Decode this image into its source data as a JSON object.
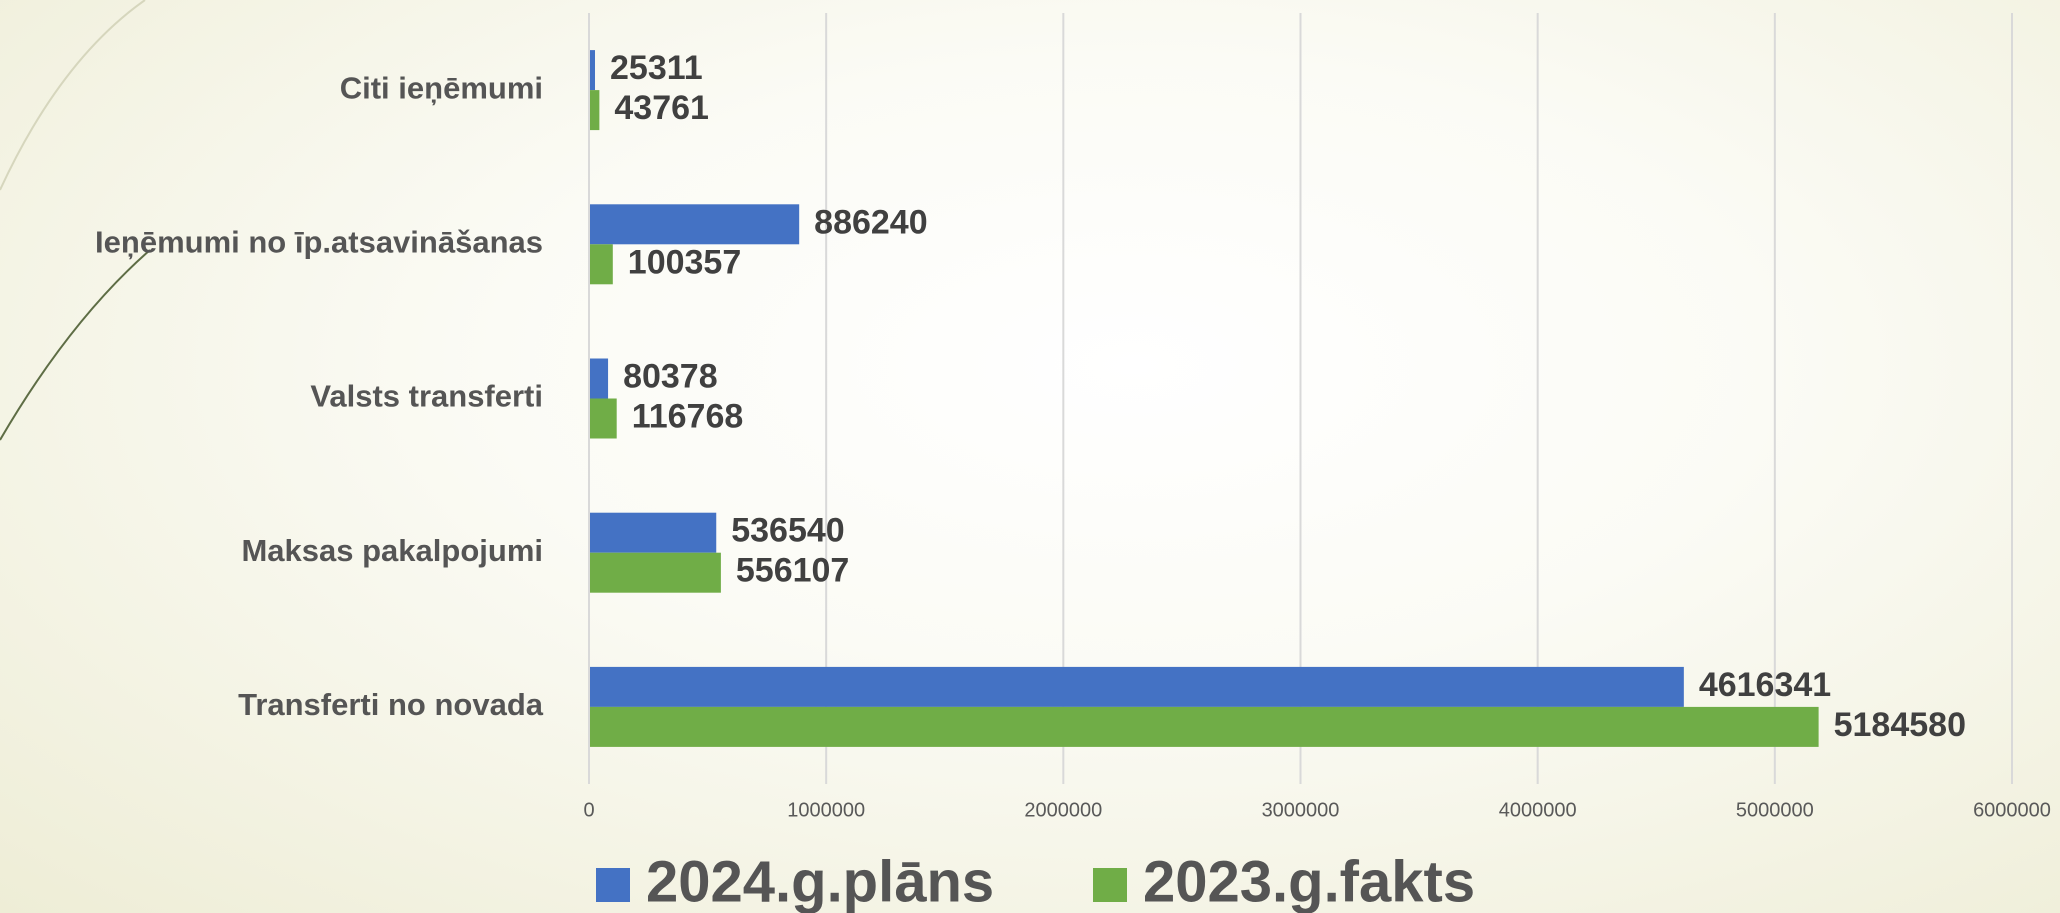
{
  "chart_data": {
    "type": "barh",
    "categories": [
      "Citi ieņēmumi",
      "Ieņēmumi no īp.atsavināšanas",
      "Valsts transferti",
      "Maksas pakalpojumi",
      "Transferti no novada"
    ],
    "series": [
      {
        "name": "2024.g.plāns",
        "color": "#4472c4",
        "values": [
          25311,
          886240,
          80378,
          536540,
          4616341
        ]
      },
      {
        "name": "2023.g.fakts",
        "color": "#70ad47",
        "values": [
          43761,
          100357,
          116768,
          556107,
          5184580
        ]
      }
    ],
    "xlim": [
      0,
      6000000
    ],
    "xticks": [
      0,
      1000000,
      2000000,
      3000000,
      4000000,
      5000000,
      6000000
    ],
    "grid": true
  }
}
